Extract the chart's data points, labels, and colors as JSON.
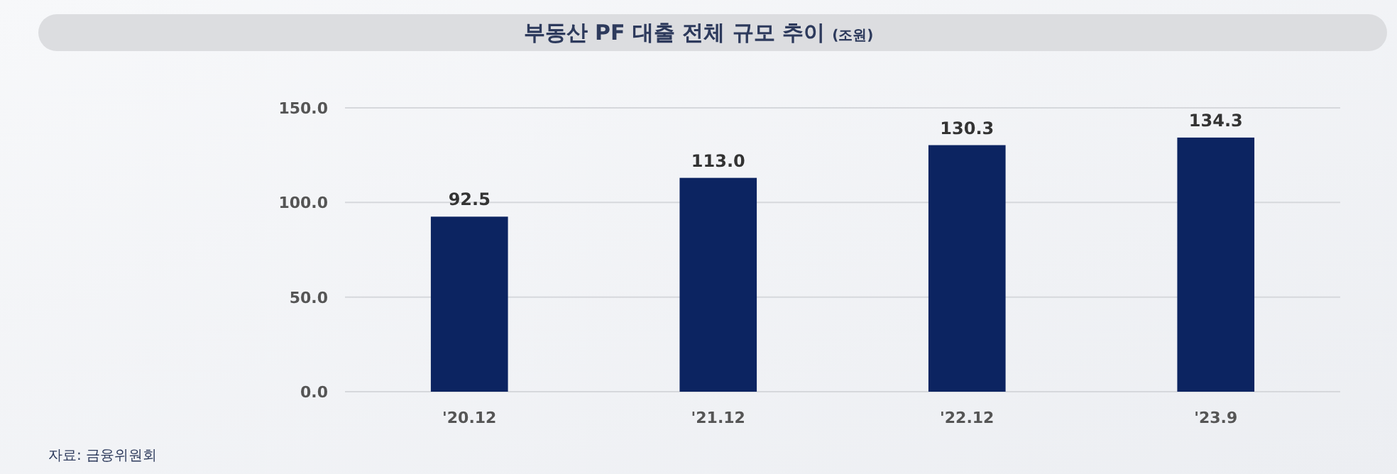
{
  "chart_data": {
    "type": "bar",
    "title": "부동산 PF 대출  전체 규모 추이",
    "subtitle": "(조원)",
    "categories": [
      "'20.12",
      "'21.12",
      "'22.12",
      "'23.9"
    ],
    "values": [
      92.5,
      113.0,
      130.3,
      134.3
    ],
    "color": "#0c2461",
    "ylim": [
      0,
      150
    ],
    "yticks": [
      {
        "value": 0,
        "label": "0.0"
      },
      {
        "value": 50,
        "label": "50.0"
      },
      {
        "value": 100,
        "label": "100.0"
      },
      {
        "value": 150,
        "label": "150.0"
      }
    ],
    "grid": "y",
    "value_labels": [
      "92.5",
      "113.0",
      "130.3",
      "134.3"
    ],
    "annotations": [
      "자료: 금융위원회"
    ]
  }
}
